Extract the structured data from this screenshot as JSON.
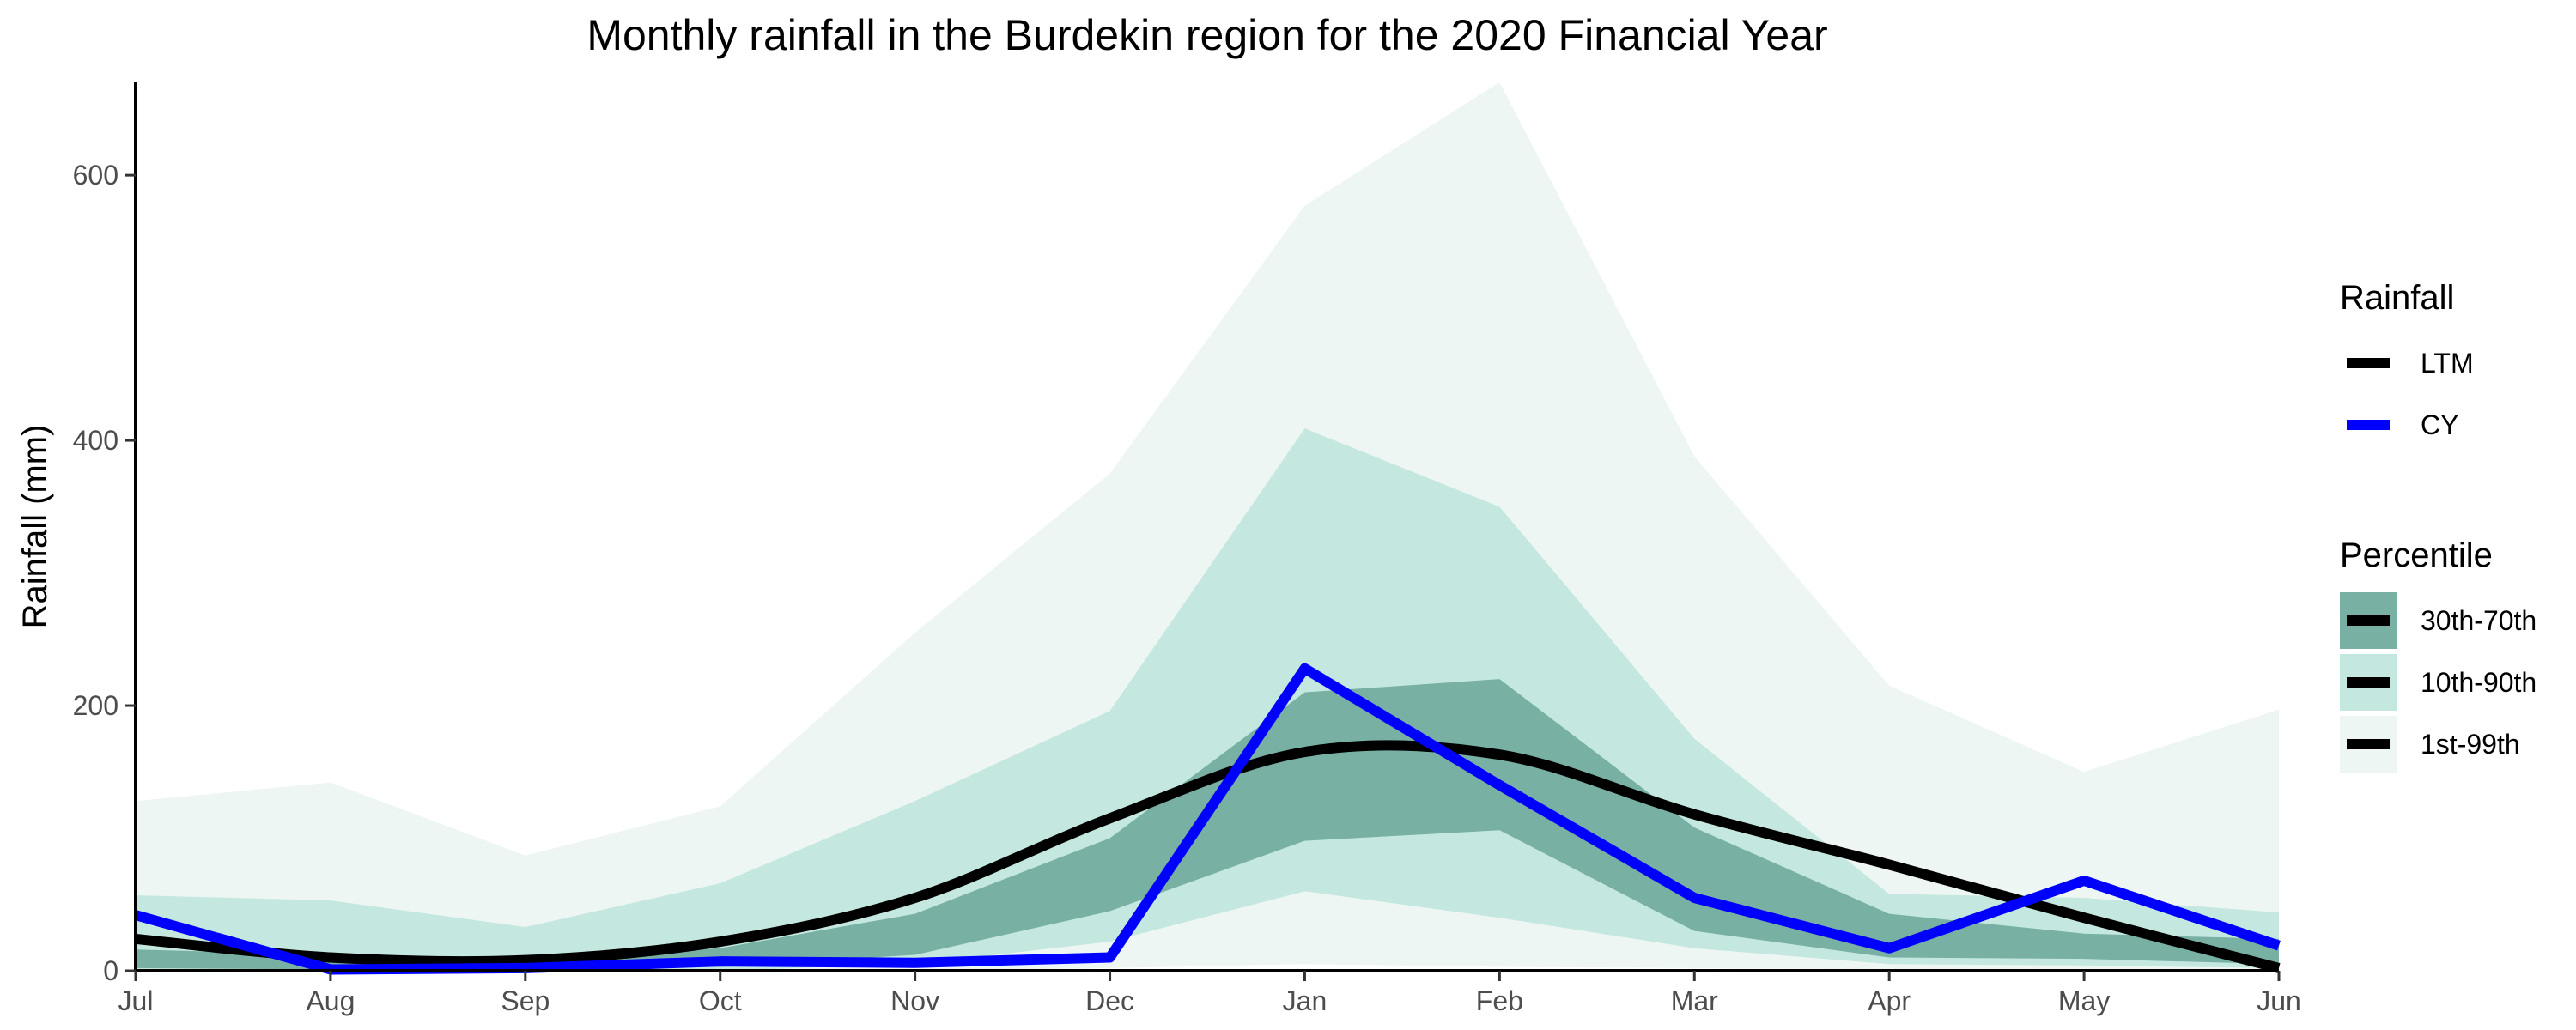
{
  "chart_data": {
    "type": "area",
    "title": "Monthly rainfall in the Burdekin region for the 2020 Financial Year",
    "xlabel": "",
    "ylabel": "Rainfall (mm)",
    "categories": [
      "Jul",
      "Aug",
      "Sep",
      "Oct",
      "Nov",
      "Dec",
      "Jan",
      "Feb",
      "Mar",
      "Apr",
      "May",
      "Jun"
    ],
    "ylim": [
      0,
      670
    ],
    "yticks": [
      0,
      200,
      400,
      600
    ],
    "grid": false,
    "legend_placement": "right",
    "bands": [
      {
        "name": "1st-99th",
        "color": "#edf6f3",
        "lower": [
          0,
          0,
          0,
          0,
          0,
          2,
          5,
          3,
          2,
          1,
          1,
          0
        ],
        "upper": [
          128,
          142,
          87,
          124,
          255,
          375,
          577,
          670,
          388,
          215,
          150,
          197
        ]
      },
      {
        "name": "10th-90th",
        "color": "#c4e8df",
        "lower": [
          0,
          0,
          0,
          0,
          5,
          22,
          60,
          40,
          17,
          5,
          4,
          2
        ],
        "upper": [
          57,
          53,
          33,
          66,
          128,
          196,
          409,
          350,
          175,
          58,
          55,
          44
        ]
      },
      {
        "name": "30th-70th",
        "color": "#78b0a4",
        "lower": [
          2,
          1,
          1,
          3,
          12,
          45,
          98,
          106,
          30,
          10,
          9,
          5
        ],
        "upper": [
          16,
          12,
          10,
          17,
          43,
          100,
          210,
          220,
          108,
          43,
          28,
          24
        ]
      }
    ],
    "series": [
      {
        "name": "LTM",
        "color": "#000000",
        "values": [
          24,
          10,
          8,
          22,
          55,
          115,
          165,
          163,
          118,
          80,
          40,
          2
        ]
      },
      {
        "name": "CY",
        "color": "#0000ff",
        "values": [
          42,
          1,
          2,
          7,
          6,
          10,
          228,
          140,
          55,
          17,
          68,
          19
        ]
      }
    ],
    "legend": {
      "rainfall_title": "Rainfall",
      "rainfall_items": [
        "LTM",
        "CY"
      ],
      "percentile_title": "Percentile",
      "percentile_items": [
        "30th-70th",
        "10th-90th",
        "1st-99th"
      ]
    }
  }
}
